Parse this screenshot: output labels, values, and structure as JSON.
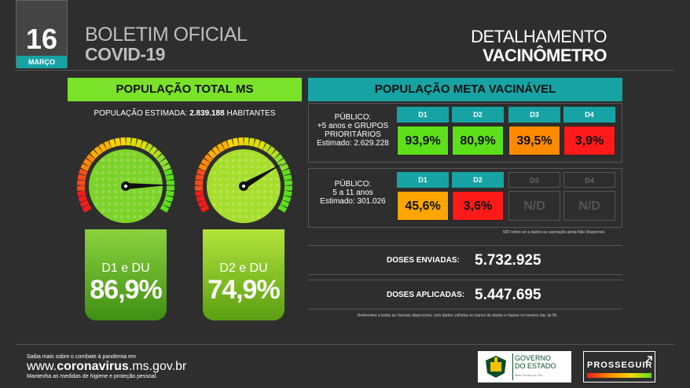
{
  "header": {
    "day": "16",
    "month": "MARÇO",
    "title_line1": "BOLETIM OFICIAL",
    "title_line2": "COVID-19",
    "right_line1": "DETALHAMENTO",
    "right_line2": "VACINÔMETRO"
  },
  "left": {
    "heading": "POPULAÇÃO TOTAL MS",
    "estimate_label": "POPULAÇÃO ESTIMADA:",
    "estimate_value": "2.839.188",
    "estimate_unit": "HABITANTES",
    "gauges": [
      {
        "label": "D1 e DU",
        "value": "86,9%",
        "percent": 86.9
      },
      {
        "label": "D2 e DU",
        "value": "74,9%",
        "percent": 74.9
      }
    ]
  },
  "right": {
    "heading": "POPULAÇÃO META VACINÁVEL",
    "group1": {
      "label_line1": "PÚBLICO:",
      "label_line2": "+5 anos e GRUPOS",
      "label_line3": "PRIORITÁRIOS",
      "label_line4": "Estimado: 2.629.228",
      "doses": [
        {
          "name": "D1",
          "value": "93,9%",
          "color": "#5de01a"
        },
        {
          "name": "D2",
          "value": "80,9%",
          "color": "#5de01a"
        },
        {
          "name": "D3",
          "value": "39,5%",
          "color": "#ff8a00"
        },
        {
          "name": "D4",
          "value": "3,9%",
          "color": "#ff1a1a"
        }
      ]
    },
    "group2": {
      "label_line1": "PÚBLICO:",
      "label_line2": "5 a 11 anos",
      "label_line3": "Estimado: 301.026",
      "doses": [
        {
          "name": "D1",
          "value": "45,6%",
          "color": "#ffa500"
        },
        {
          "name": "D2",
          "value": "3,6%",
          "color": "#ff1a1a"
        },
        {
          "name": "D3",
          "value": "N/D"
        },
        {
          "name": "D4",
          "value": "N/D"
        }
      ]
    },
    "note": "N/D refere-se a dados ou vacinação ainda Não Disponível.",
    "sent_label": "DOSES ENVIADAS:",
    "sent_value": "5.732.925",
    "applied_label": "DOSES APLICADAS:",
    "applied_value": "5.447.695",
    "footnote": "Referentes a todas as Vacinas disponíveis, com dados colhidos no banco de dados e-Vacine no mesmo dia, às 8h"
  },
  "footer": {
    "line1": "Saiba mais sobre o combate à pandemia em",
    "url_prefix": "www.",
    "url_bold": "coronavirus",
    "url_suffix": ".ms.gov.br",
    "line3": "Mantenha as medidas de higiene e proteção pessoal.",
    "gov_line1": "GOVERNO",
    "gov_line2": "DO ESTADO",
    "gov_sub": "Mato Grosso do Sul",
    "prosseguir": "PROSSEGUIR"
  },
  "colors": {
    "teal": "#17a3a3",
    "green": "#7be22a",
    "background": "#2e2e2e"
  }
}
